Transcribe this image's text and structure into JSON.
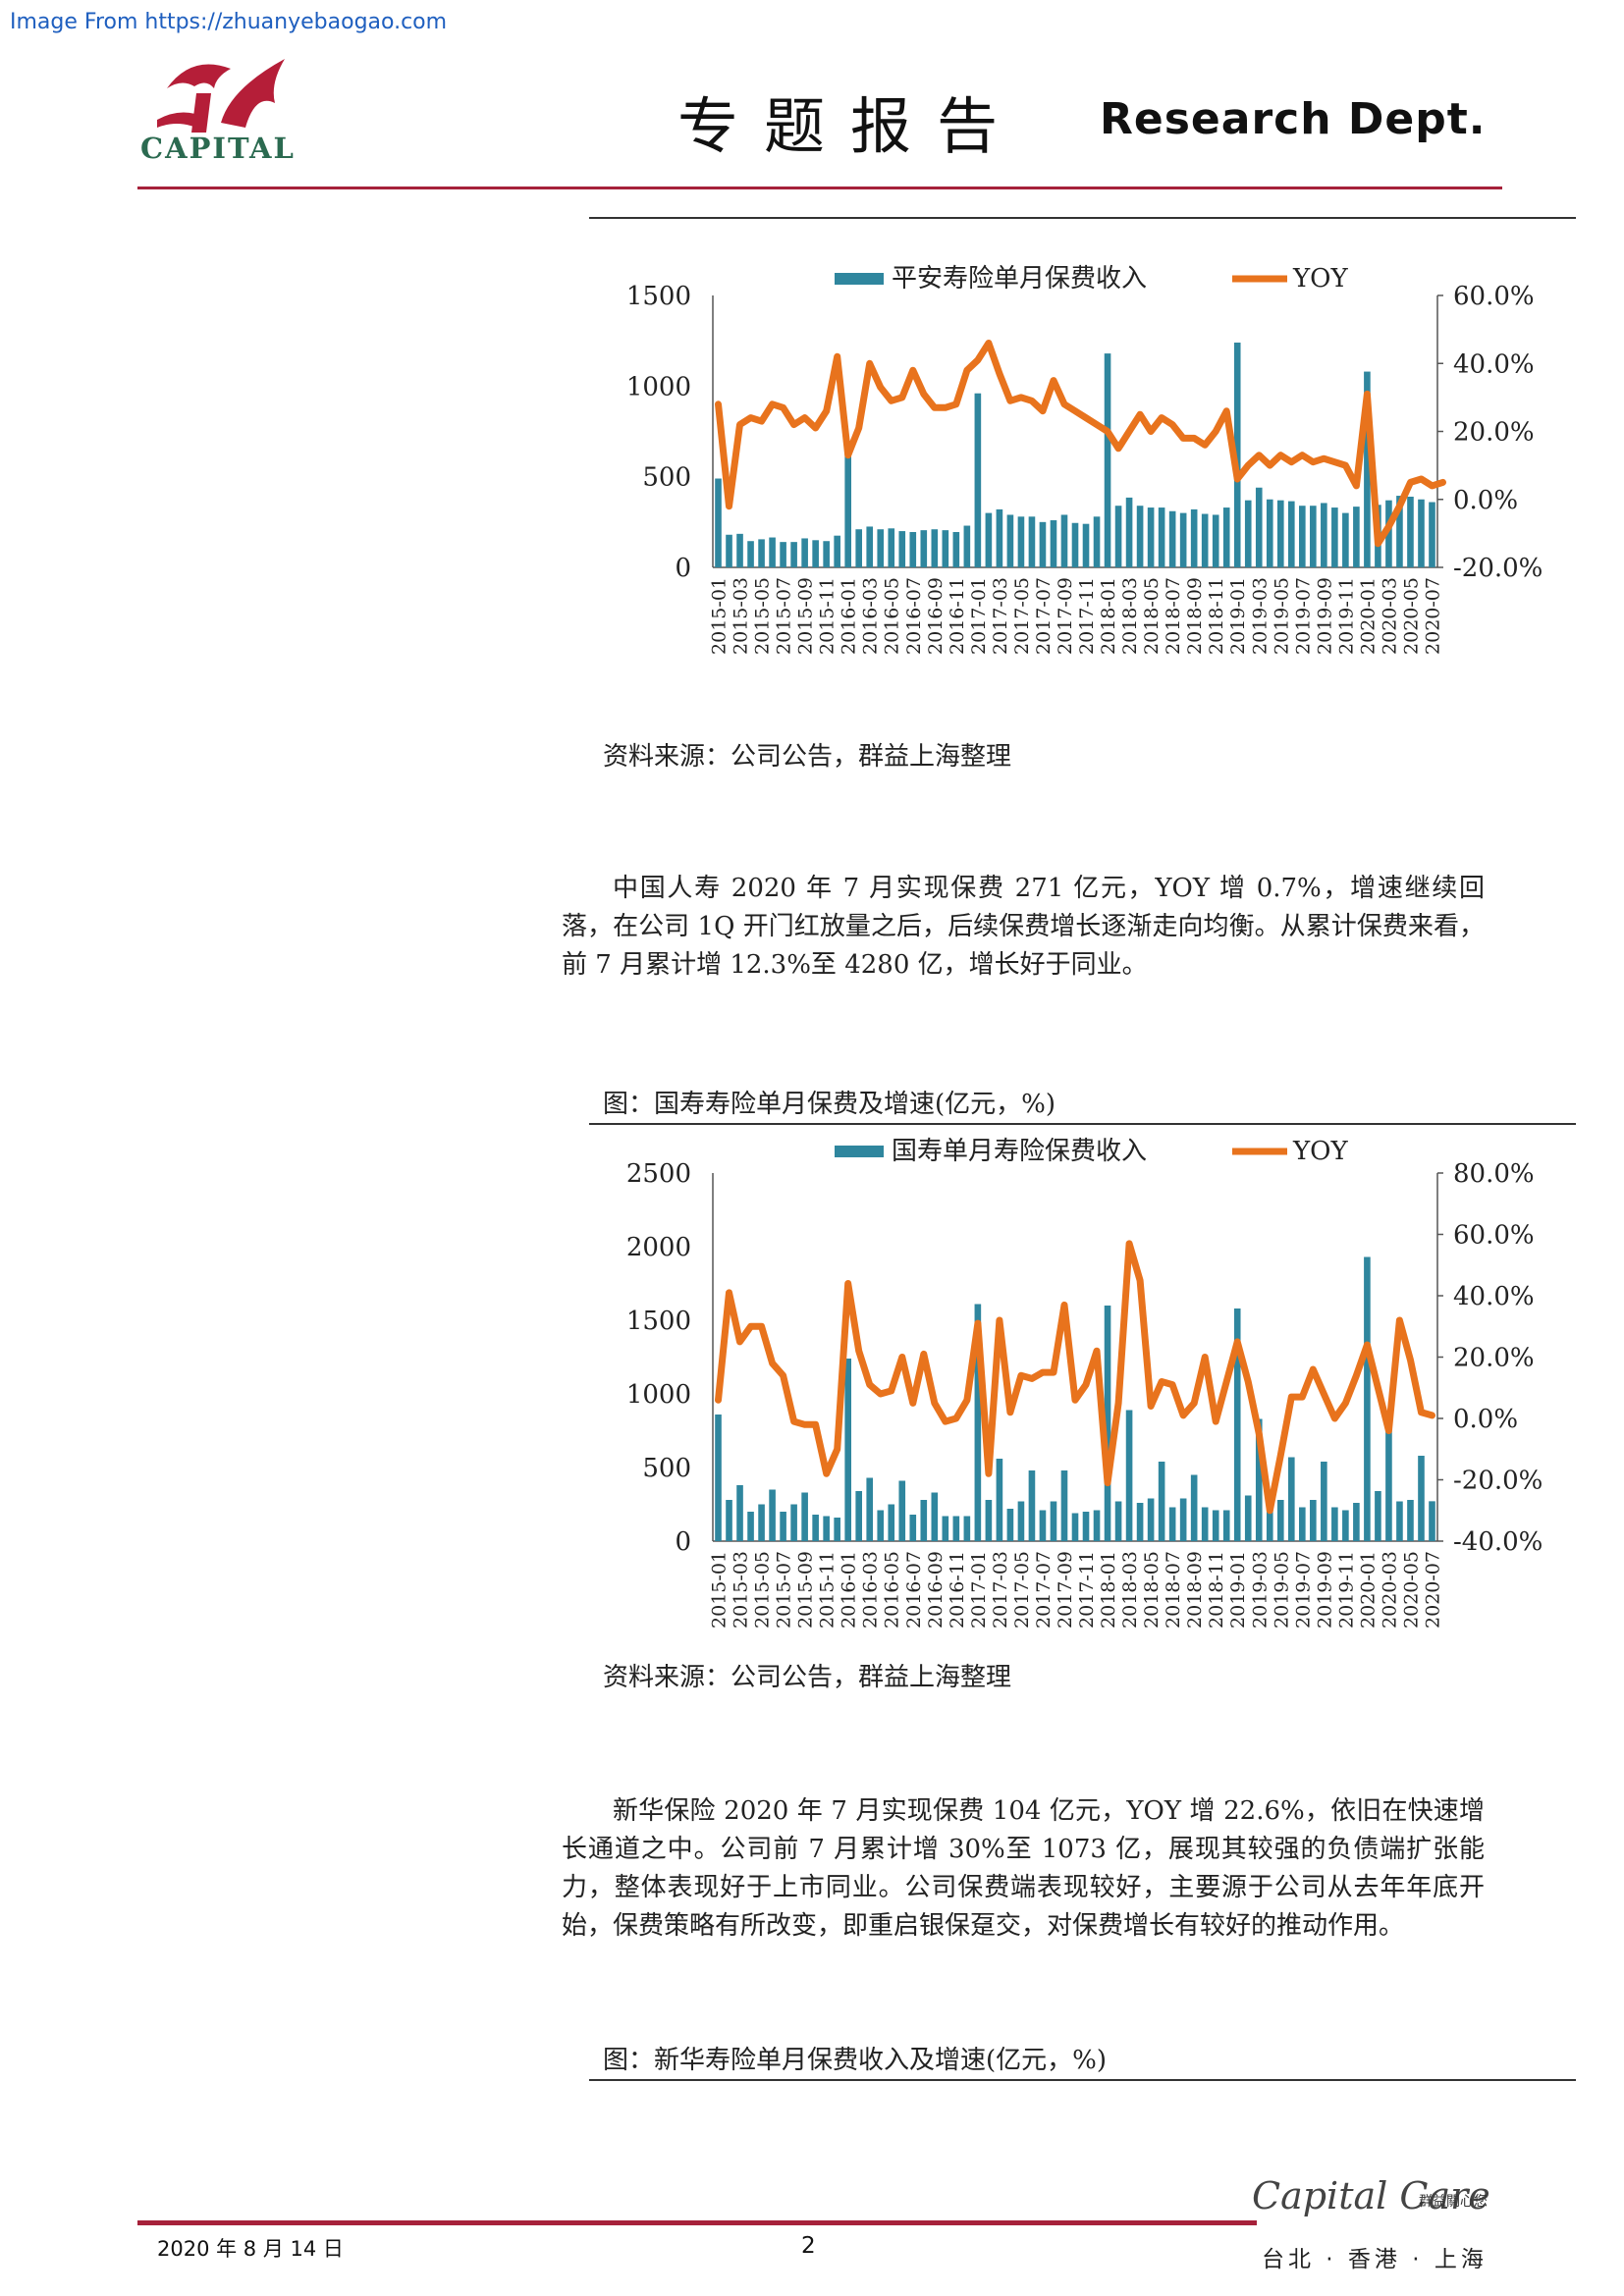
{
  "watermark": "Image From https://zhuanyebaogao.com",
  "header": {
    "logo_text": "CAPITAL",
    "title": "专题报告",
    "dept": "Research  Dept."
  },
  "source_line": "资料来源：公司公告，群益上海整理",
  "paragraph1": "中国人寿 2020 年 7 月实现保费 271 亿元，YOY 增 0.7%，增速继续回落，在公司 1Q 开门红放量之后，后续保费增长逐渐走向均衡。从累计保费来看，前 7 月累计增 12.3%至 4280 亿，增长好于同业。",
  "caption2": "图：国寿寿险单月保费及增速(亿元，%)",
  "paragraph2": "新华保险 2020 年 7 月实现保费 104 亿元，YOY 增 22.6%，依旧在快速增长通道之中。公司前 7 月累计增 30%至 1073 亿，展现其较强的负债端扩张能力，整体表现好于上市同业。公司保费端表现较好，主要源于公司从去年年底开始，保费策略有所改变，即重启银保趸交，对保费增长有较好的推动作用。",
  "caption3": "图：新华寿险单月保费收入及增速(亿元，%)",
  "footer": {
    "date": "2020 年 8 月 14 日",
    "page": "2",
    "brand": "Capital Care",
    "brand_cn": "群益關心您",
    "cities": "台北 · 香港 · 上海"
  },
  "colors": {
    "bar": "#2f869e",
    "line": "#e8731d",
    "accent": "#a6213a"
  },
  "chart_data": [
    {
      "type": "bar+line",
      "x_tick_labels": [
        "2015-01",
        "2015-03",
        "2015-05",
        "2015-07",
        "2015-09",
        "2015-11",
        "2016-01",
        "2016-03",
        "2016-05",
        "2016-07",
        "2016-09",
        "2016-11",
        "2017-01",
        "2017-03",
        "2017-05",
        "2017-07",
        "2017-09",
        "2017-11",
        "2018-01",
        "2018-03",
        "2018-05",
        "2018-07",
        "2018-09",
        "2018-11",
        "2019-01",
        "2019-03",
        "2019-05",
        "2019-07",
        "2019-09",
        "2019-11",
        "2020-01",
        "2020-03",
        "2020-05",
        "2020-07"
      ],
      "y_left_ticks": [
        "1500",
        "1000",
        "500",
        "0"
      ],
      "y_right_ticks": [
        "60.0%",
        "40.0%",
        "20.0%",
        "0.0%",
        "-20.0%"
      ],
      "ylim_left": [
        0,
        1500
      ],
      "ylim_right": [
        -20,
        60
      ],
      "series": [
        {
          "name": "平安寿险单月保费收入",
          "kind": "bar",
          "values": [
            490,
            180,
            185,
            145,
            155,
            165,
            140,
            140,
            160,
            150,
            145,
            175,
            690,
            210,
            225,
            210,
            215,
            200,
            195,
            205,
            210,
            205,
            195,
            230,
            960,
            300,
            320,
            290,
            280,
            280,
            250,
            260,
            290,
            245,
            240,
            280,
            1180,
            340,
            385,
            340,
            330,
            330,
            310,
            300,
            320,
            295,
            290,
            330,
            1240,
            370,
            440,
            375,
            370,
            365,
            340,
            340,
            355,
            330,
            300,
            335,
            1080,
            345,
            370,
            395,
            390,
            375,
            360
          ]
        },
        {
          "name": "YOY",
          "kind": "line",
          "values": [
            28,
            -2,
            22,
            24,
            23,
            28,
            27,
            22,
            24,
            21,
            26,
            42,
            13,
            21,
            40,
            33,
            29,
            30,
            38,
            31,
            27,
            27,
            28,
            38,
            41,
            46,
            37,
            29,
            30,
            29,
            26,
            35,
            28,
            26,
            24,
            22,
            20,
            15,
            20,
            25,
            20,
            24,
            22,
            18,
            18,
            16,
            20,
            26,
            6,
            10,
            13,
            10,
            13,
            11,
            13,
            11,
            12,
            11,
            10,
            4,
            31,
            -13,
            -8,
            -2,
            5,
            6,
            4,
            5
          ]
        }
      ]
    },
    {
      "type": "bar+line",
      "x_tick_labels": [
        "2015-01",
        "2015-03",
        "2015-05",
        "2015-07",
        "2015-09",
        "2015-11",
        "2016-01",
        "2016-03",
        "2016-05",
        "2016-07",
        "2016-09",
        "2016-11",
        "2017-01",
        "2017-03",
        "2017-05",
        "2017-07",
        "2017-09",
        "2017-11",
        "2018-01",
        "2018-03",
        "2018-05",
        "2018-07",
        "2018-09",
        "2018-11",
        "2019-01",
        "2019-03",
        "2019-05",
        "2019-07",
        "2019-09",
        "2019-11",
        "2020-01",
        "2020-03",
        "2020-05",
        "2020-07"
      ],
      "y_left_ticks": [
        "2500",
        "2000",
        "1500",
        "1000",
        "500",
        "0"
      ],
      "y_right_ticks": [
        "80.0%",
        "60.0%",
        "40.0%",
        "20.0%",
        "0.0%",
        "-20.0%",
        "-40.0%"
      ],
      "ylim_left": [
        0,
        2500
      ],
      "ylim_right": [
        -40,
        80
      ],
      "series": [
        {
          "name": "国寿单月寿险保费收入",
          "kind": "bar",
          "values": [
            860,
            280,
            380,
            200,
            250,
            350,
            200,
            250,
            330,
            180,
            170,
            160,
            1240,
            340,
            430,
            210,
            250,
            410,
            180,
            280,
            330,
            170,
            170,
            170,
            1610,
            280,
            560,
            220,
            270,
            480,
            210,
            270,
            480,
            190,
            200,
            210,
            1600,
            270,
            890,
            260,
            290,
            540,
            230,
            290,
            450,
            230,
            210,
            210,
            1580,
            310,
            830,
            240,
            280,
            570,
            230,
            280,
            540,
            230,
            210,
            260,
            1930,
            340,
            750,
            270,
            280,
            580,
            271
          ]
        },
        {
          "name": "YOY",
          "kind": "line",
          "values": [
            6,
            41,
            25,
            30,
            30,
            18,
            14,
            -1,
            -2,
            -2,
            -18,
            -10,
            44,
            22,
            11,
            8,
            9,
            20,
            5,
            21,
            5,
            -1,
            0,
            6,
            31,
            -18,
            32,
            2,
            14,
            13,
            15,
            15,
            37,
            6,
            11,
            22,
            -21,
            5,
            57,
            45,
            4,
            12,
            11,
            1,
            5,
            20,
            -1,
            12,
            25,
            12,
            -5,
            -30,
            -12,
            7,
            7,
            16,
            8,
            0,
            5,
            14,
            24,
            10,
            -4,
            32,
            19,
            2,
            1
          ]
        }
      ]
    }
  ]
}
